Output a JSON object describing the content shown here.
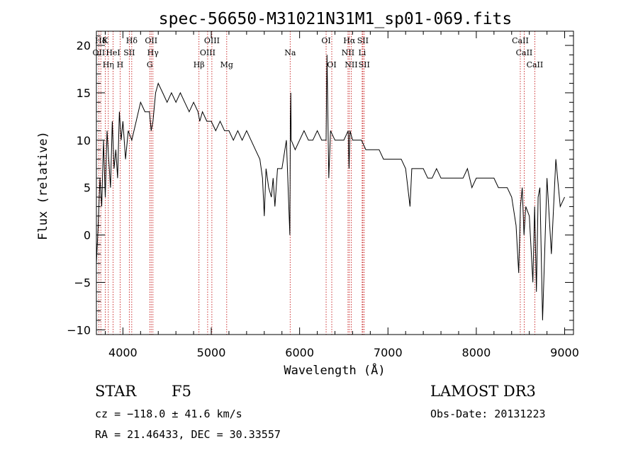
{
  "chart_data": {
    "type": "line",
    "title": "spec-56650-M31021N31M1_sp01-069.fits",
    "xlabel": "Wavelength (Å)",
    "ylabel": "Flux (relative)",
    "xlim": [
      3700,
      9100
    ],
    "ylim": [
      -10.5,
      21.5
    ],
    "xticks": [
      4000,
      5000,
      6000,
      7000,
      8000,
      9000
    ],
    "xtick_labels": [
      "4000",
      "5000",
      "6000",
      "7000",
      "8000",
      "9000"
    ],
    "yticks": [
      -10,
      -5,
      0,
      5,
      10,
      15,
      20
    ],
    "ytick_labels": [
      "−10",
      "−5",
      "0",
      "5",
      "10",
      "15",
      "20"
    ],
    "series": [
      {
        "name": "flux",
        "x": [
          3700,
          3720,
          3740,
          3760,
          3780,
          3800,
          3820,
          3840,
          3860,
          3880,
          3900,
          3920,
          3940,
          3960,
          3980,
          4000,
          4030,
          4060,
          4100,
          4150,
          4200,
          4250,
          4300,
          4320,
          4340,
          4370,
          4400,
          4450,
          4500,
          4550,
          4600,
          4650,
          4700,
          4750,
          4800,
          4850,
          4870,
          4900,
          4950,
          5000,
          5050,
          5100,
          5150,
          5200,
          5250,
          5300,
          5350,
          5400,
          5450,
          5500,
          5550,
          5580,
          5600,
          5620,
          5650,
          5680,
          5700,
          5720,
          5750,
          5800,
          5850,
          5890,
          5895,
          5900,
          5905,
          5950,
          6000,
          6050,
          6100,
          6150,
          6200,
          6250,
          6300,
          6310,
          6330,
          6350,
          6400,
          6450,
          6500,
          6550,
          6560,
          6570,
          6600,
          6650,
          6700,
          6750,
          6800,
          6850,
          6900,
          6950,
          7000,
          7050,
          7100,
          7150,
          7200,
          7250,
          7270,
          7300,
          7350,
          7400,
          7450,
          7500,
          7550,
          7600,
          7650,
          7700,
          7750,
          7800,
          7850,
          7900,
          7950,
          8000,
          8050,
          8100,
          8150,
          8200,
          8250,
          8300,
          8350,
          8400,
          8450,
          8480,
          8500,
          8520,
          8540,
          8560,
          8600,
          8640,
          8660,
          8680,
          8700,
          8720,
          8750,
          8800,
          8850,
          8900,
          8950,
          9000
        ],
        "y": [
          -3,
          1,
          6,
          3,
          10,
          4,
          11,
          8,
          5,
          12,
          7,
          9,
          6,
          13,
          10,
          12,
          8,
          11,
          10,
          12,
          14,
          13,
          13,
          11,
          12,
          15,
          16,
          15,
          14,
          15,
          14,
          15,
          14,
          13,
          14,
          13,
          12,
          13,
          12,
          12,
          11,
          12,
          11,
          11,
          10,
          11,
          10,
          11,
          10,
          9,
          8,
          6,
          2,
          7,
          5,
          4,
          6,
          3,
          7,
          7,
          10,
          0,
          12,
          15,
          10,
          9,
          10,
          11,
          10,
          10,
          11,
          10,
          10,
          19,
          6,
          11,
          10,
          10,
          10,
          11,
          7,
          11,
          10,
          10,
          10,
          9,
          9,
          9,
          9,
          8,
          8,
          8,
          8,
          8,
          7,
          3,
          7,
          7,
          7,
          7,
          6,
          6,
          7,
          6,
          6,
          6,
          6,
          6,
          6,
          7,
          5,
          6,
          6,
          6,
          6,
          6,
          5,
          5,
          5,
          4,
          1,
          -4,
          3,
          5,
          0,
          3,
          2,
          -5,
          3,
          -6,
          4,
          5,
          -9,
          6,
          -2,
          8,
          3,
          4
        ]
      }
    ],
    "lines": [
      {
        "label": "Hδ",
        "x": 3750,
        "row": 1
      },
      {
        "label": "K",
        "x": 3800,
        "row": 1
      },
      {
        "label": "Hδ",
        "x": 4100,
        "row": 1
      },
      {
        "label": "OII",
        "x": 4320,
        "row": 1
      },
      {
        "label": "OIII",
        "x": 5007,
        "row": 1
      },
      {
        "label": "OI",
        "x": 6300,
        "row": 1
      },
      {
        "label": "Hα",
        "x": 6563,
        "row": 1
      },
      {
        "label": "SII",
        "x": 6716,
        "row": 1
      },
      {
        "label": "CaII",
        "x": 8498,
        "row": 1
      },
      {
        "label": "OII",
        "x": 3727,
        "row": 2
      },
      {
        "label": "HeI",
        "x": 3889,
        "row": 2
      },
      {
        "label": "SII",
        "x": 4072,
        "row": 2
      },
      {
        "label": "Hγ",
        "x": 4340,
        "row": 2
      },
      {
        "label": "OIII",
        "x": 4959,
        "row": 2
      },
      {
        "label": "Na",
        "x": 5893,
        "row": 2
      },
      {
        "label": "NII",
        "x": 6548,
        "row": 2
      },
      {
        "label": "Li",
        "x": 6708,
        "row": 2
      },
      {
        "label": "CaII",
        "x": 8542,
        "row": 2
      },
      {
        "label": "Hη",
        "x": 3835,
        "row": 3
      },
      {
        "label": "H",
        "x": 3968,
        "row": 3
      },
      {
        "label": "G",
        "x": 4304,
        "row": 3
      },
      {
        "label": "Hβ",
        "x": 4861,
        "row": 3
      },
      {
        "label": "Mg",
        "x": 5175,
        "row": 3
      },
      {
        "label": "OI",
        "x": 6364,
        "row": 3
      },
      {
        "label": "NII",
        "x": 6584,
        "row": 3
      },
      {
        "label": "SII",
        "x": 6731,
        "row": 3
      },
      {
        "label": "CaII",
        "x": 8662,
        "row": 3
      }
    ]
  },
  "info": {
    "object_class": "STAR",
    "subclass": "F5",
    "survey": "LAMOST DR3",
    "cz_text": "cz = −118.0 ± 41.6 km/s",
    "obs_date_text": "Obs-Date: 20131223",
    "radec_text": "RA =  21.46433, DEC =  30.33557"
  },
  "colors": {
    "line_marker": "#c00000",
    "spectrum": "#000000"
  }
}
